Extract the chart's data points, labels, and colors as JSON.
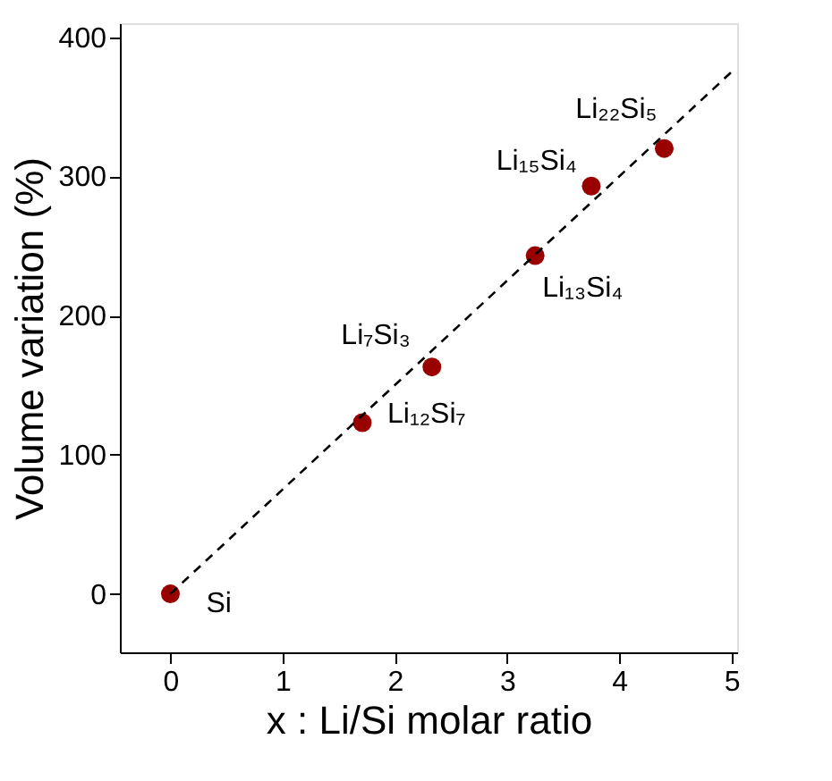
{
  "chart_data": {
    "type": "scatter",
    "xlabel": "x : Li/Si molar ratio",
    "ylabel": "Volume variation (%)",
    "x": [
      0,
      1.71,
      2.33,
      3.25,
      3.75,
      4.4
    ],
    "series": [
      {
        "color": "#990000",
        "values": [
          0,
          123,
          163,
          243,
          293,
          320
        ],
        "value_labels": [
          "Si",
          "Li₁₂Si₇",
          "Li₇Si₃",
          "Li₁₃Si₄",
          "Li₁₅Si₄",
          "Li₂₂Si₅"
        ]
      },
      {
        "type": "line",
        "color": "#000000",
        "line_style": "dashed",
        "marker": "none",
        "x": [
          0,
          5
        ],
        "values": [
          0,
          375
        ]
      }
    ],
    "xlim": [
      -0.45,
      5.05
    ],
    "ylim": [
      -42,
      410
    ],
    "xticks": [
      0,
      1,
      2,
      3,
      4,
      5
    ],
    "yticks": [
      0,
      100,
      200,
      300,
      400
    ],
    "grid": false,
    "legend": false,
    "marker": "circle"
  }
}
